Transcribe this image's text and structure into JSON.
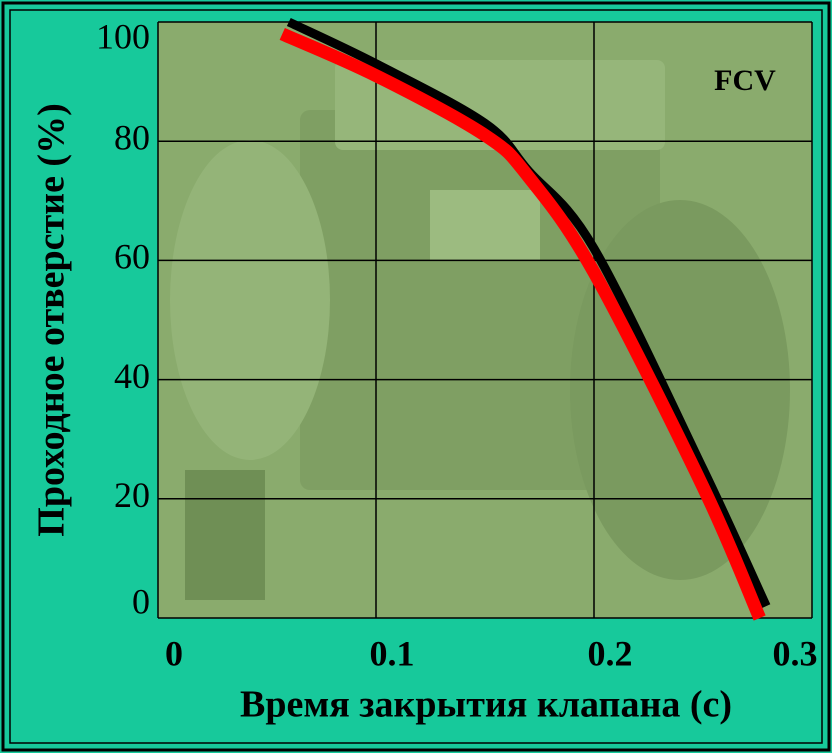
{
  "chart_data": {
    "type": "line",
    "xlabel": "Время закрытия клапана (с)",
    "ylabel": "Проходное отверстие (%)",
    "annotation": "FCV",
    "xlim": [
      0,
      0.3
    ],
    "xticks": [
      0,
      0.1,
      0.2,
      0.3
    ],
    "ylim": [
      0,
      100
    ],
    "yticks": [
      0,
      20,
      40,
      60,
      80,
      100
    ],
    "grid": true,
    "series": [
      {
        "color": "#000000",
        "x": [
          0.06,
          0.1,
          0.15,
          0.17,
          0.2,
          0.25,
          0.279
        ],
        "values": [
          100,
          93,
          83,
          75,
          62,
          25,
          2
        ]
      },
      {
        "color": "#ff0000",
        "x": [
          0.057,
          0.1,
          0.15,
          0.17,
          0.2,
          0.25,
          0.276
        ],
        "values": [
          98,
          91,
          81,
          74,
          58,
          22,
          0
        ]
      }
    ]
  }
}
